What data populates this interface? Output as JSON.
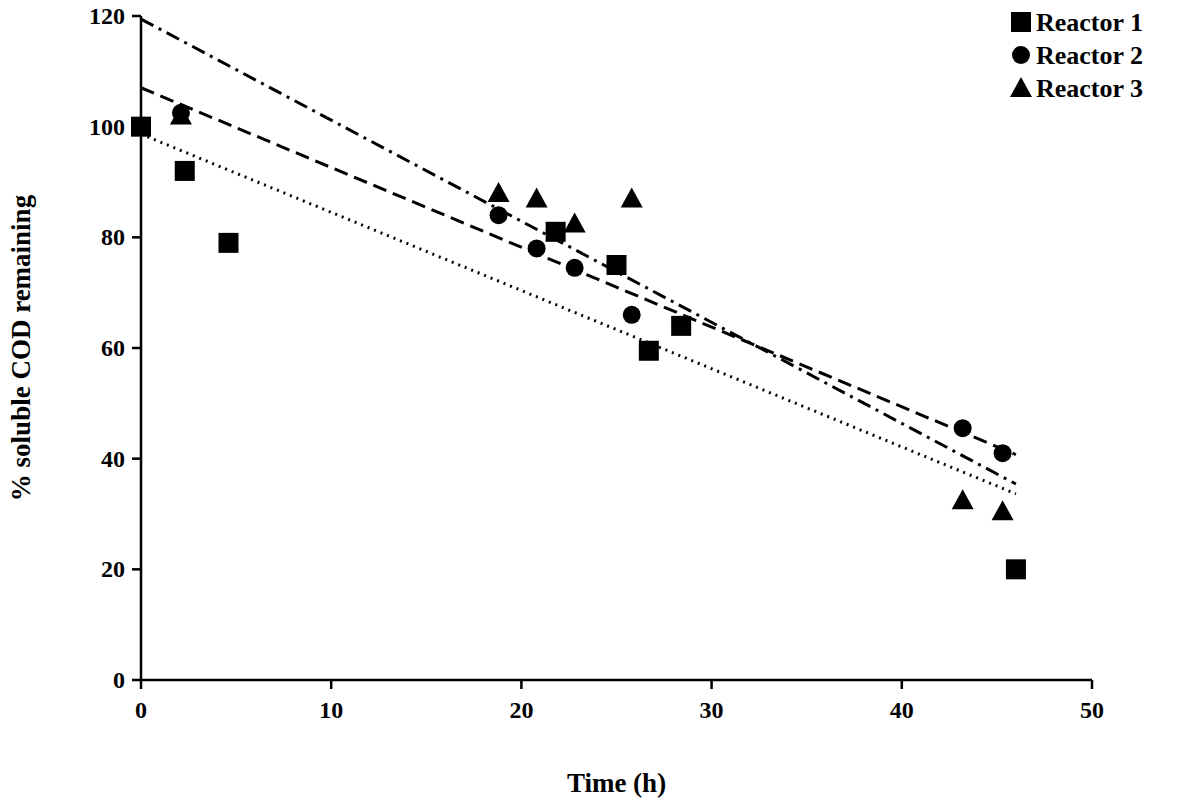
{
  "chart_data": {
    "type": "scatter",
    "x_label": "Time (h)",
    "y_label": "% soluble COD remaining",
    "xlim": [
      0,
      50
    ],
    "xticks": [
      0,
      10,
      20,
      30,
      40,
      50
    ],
    "ylim": [
      0,
      120
    ],
    "yticks": [
      0,
      20,
      40,
      60,
      80,
      100,
      120
    ],
    "grid": false,
    "legend": "top-right",
    "series": [
      {
        "name": "Reactor 1",
        "color": "#000000",
        "marker": "square",
        "line_style": "dotted",
        "x": [
          0,
          2.3,
          4.6,
          21.8,
          25.0,
          26.7,
          28.4,
          46.0
        ],
        "values": [
          100,
          92,
          79,
          81,
          75,
          59.5,
          64,
          20
        ]
      },
      {
        "name": "Reactor 2",
        "color": "#000000",
        "marker": "circle",
        "line_style": "dashed",
        "x": [
          2.1,
          18.8,
          20.8,
          22.8,
          25.8,
          43.2,
          45.3
        ],
        "values": [
          102.5,
          84,
          78,
          74.5,
          66,
          45.5,
          41
        ]
      },
      {
        "name": "Reactor 3",
        "color": "#000000",
        "marker": "triangle",
        "line_style": "dashdot",
        "x": [
          2.1,
          18.8,
          20.8,
          22.8,
          25.8,
          43.2,
          45.3
        ],
        "values": [
          102,
          88,
          87,
          82.5,
          87,
          32.5,
          30.5
        ]
      }
    ]
  }
}
